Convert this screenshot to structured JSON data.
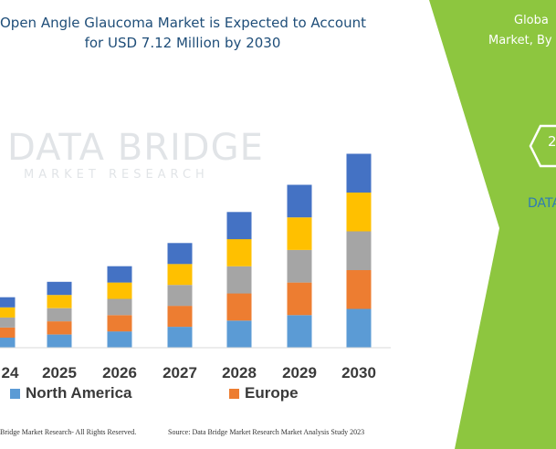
{
  "title_lines": [
    "Open Angle Glaucoma Market is Expected to Account",
    "for USD 7.12 Million by 2030"
  ],
  "watermark": {
    "main": "DATA BRIDGE",
    "sub": "MARKET RESEARCH"
  },
  "chart_data": {
    "type": "bar",
    "stacked": true,
    "categories": [
      "24",
      "2025",
      "2026",
      "2027",
      "2028",
      "2029",
      "2030"
    ],
    "series": [
      {
        "name": "North America",
        "color": "#5b9bd5",
        "values": [
          1.3,
          1.7,
          2.1,
          2.7,
          3.5,
          4.2,
          5.0
        ]
      },
      {
        "name": "Europe",
        "color": "#ed7d31",
        "values": [
          1.3,
          1.7,
          2.1,
          2.7,
          3.5,
          4.2,
          5.0
        ]
      },
      {
        "series_label_visible": false,
        "color": "#a5a5a5",
        "values": [
          1.3,
          1.7,
          2.1,
          2.7,
          3.5,
          4.2,
          5.0
        ]
      },
      {
        "series_label_visible": false,
        "color": "#ffc000",
        "values": [
          1.3,
          1.7,
          2.1,
          2.7,
          3.5,
          4.2,
          5.0
        ]
      },
      {
        "series_label_visible": false,
        "color": "#4472c4",
        "values": [
          1.3,
          1.7,
          2.1,
          2.7,
          3.5,
          4.2,
          5.0
        ]
      }
    ],
    "ylim": [
      0,
      30
    ],
    "grid": false,
    "legend_placement": "bottom"
  },
  "footer": {
    "left": "Bridge Market Research- All Rights Reserved.",
    "right": "Source: Data Bridge Market Research Market Analysis Study 2023"
  },
  "side_panel": {
    "color": "#8dc63f",
    "line1": "Globa",
    "line2": "Market, By",
    "hex_label": "2",
    "brand": "DATA"
  }
}
